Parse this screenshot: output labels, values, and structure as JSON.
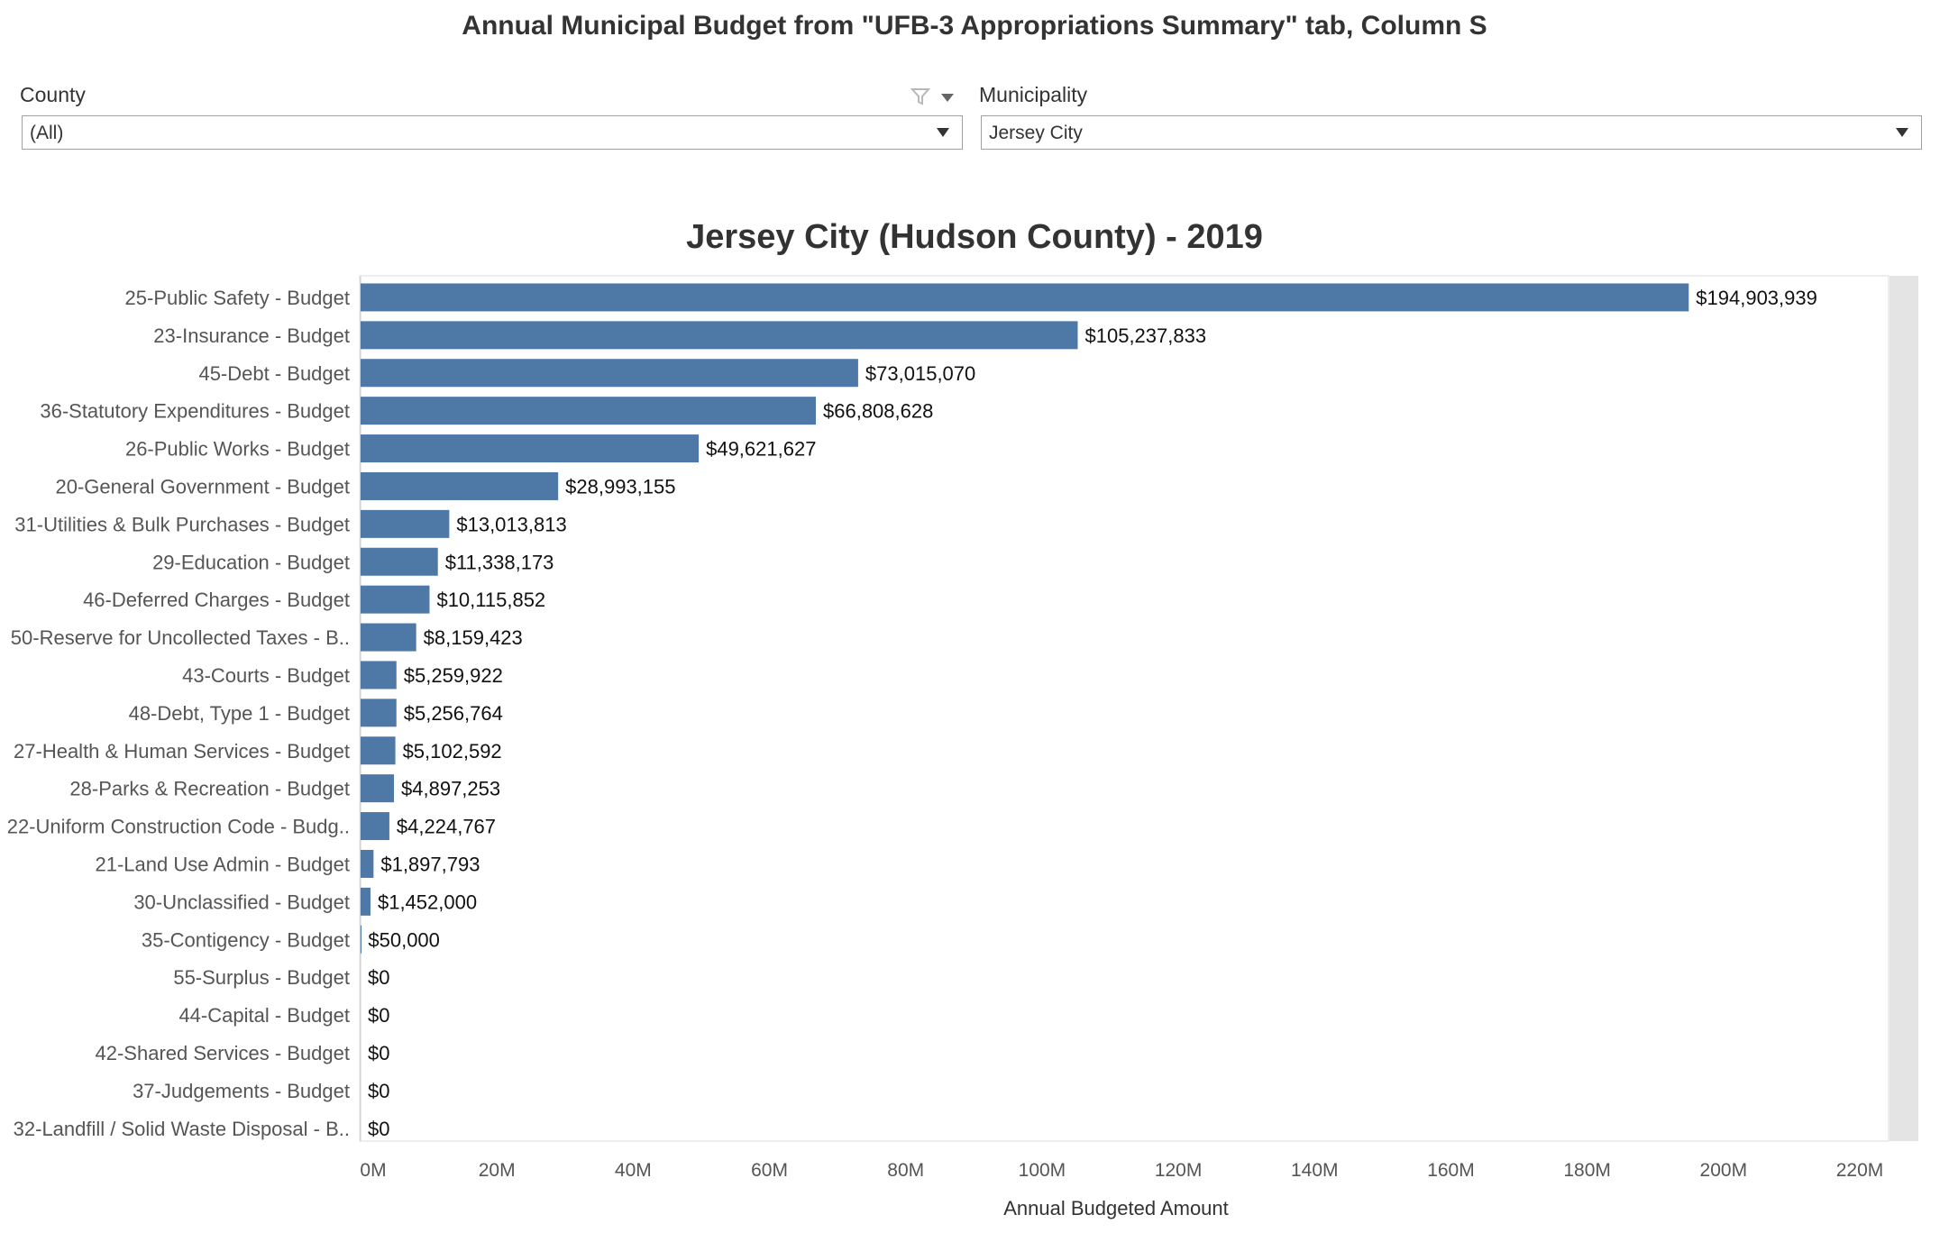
{
  "page_title": "Annual Municipal Budget from \"UFB-3 Appropriations Summary\" tab, Column S",
  "filters": {
    "county": {
      "label": "County",
      "value": "(All)"
    },
    "municipality": {
      "label": "Municipality",
      "value": "Jersey City"
    }
  },
  "icons": {
    "filter": "filter-icon",
    "menu": "chevron-down-icon",
    "dropdown": "chevron-down-icon"
  },
  "colors": {
    "bar": "#4e79a7",
    "scrollbar": "#e4e4e4"
  },
  "chart_data": {
    "type": "bar",
    "orientation": "horizontal",
    "title": "Jersey City (Hudson County) - 2019",
    "xlabel": "Annual Budgeted Amount",
    "ylabel": "",
    "xlim": [
      0,
      220000000
    ],
    "x_ticks": [
      "0M",
      "20M",
      "40M",
      "60M",
      "80M",
      "100M",
      "120M",
      "140M",
      "160M",
      "180M",
      "200M",
      "220M"
    ],
    "grid": false,
    "categories": [
      "25-Public Safety - Budget",
      "23-Insurance - Budget",
      "45-Debt - Budget",
      "36-Statutory Expenditures - Budget",
      "26-Public Works - Budget",
      "20-General Government - Budget",
      "31-Utilities & Bulk Purchases - Budget",
      "29-Education - Budget",
      "46-Deferred Charges - Budget",
      "50-Reserve for Uncollected Taxes - B..",
      "43-Courts - Budget",
      "48-Debt, Type 1 - Budget",
      "27-Health & Human Services - Budget",
      "28-Parks & Recreation - Budget",
      "22-Uniform Construction Code - Budg..",
      "21-Land Use Admin - Budget",
      "30-Unclassified - Budget",
      "35-Contigency - Budget",
      "55-Surplus - Budget",
      "44-Capital - Budget",
      "42-Shared Services - Budget",
      "37-Judgements - Budget",
      "32-Landfill / Solid Waste Disposal - B.."
    ],
    "values": [
      194903939,
      105237833,
      73015070,
      66808628,
      49621627,
      28993155,
      13013813,
      11338173,
      10115852,
      8159423,
      5259922,
      5256764,
      5102592,
      4897253,
      4224767,
      1897793,
      1452000,
      50000,
      0,
      0,
      0,
      0,
      0
    ],
    "value_labels": [
      "$194,903,939",
      "$105,237,833",
      "$73,015,070",
      "$66,808,628",
      "$49,621,627",
      "$28,993,155",
      "$13,013,813",
      "$11,338,173",
      "$10,115,852",
      "$8,159,423",
      "$5,259,922",
      "$5,256,764",
      "$5,102,592",
      "$4,897,253",
      "$4,224,767",
      "$1,897,793",
      "$1,452,000",
      "$50,000",
      "$0",
      "$0",
      "$0",
      "$0",
      "$0"
    ]
  }
}
